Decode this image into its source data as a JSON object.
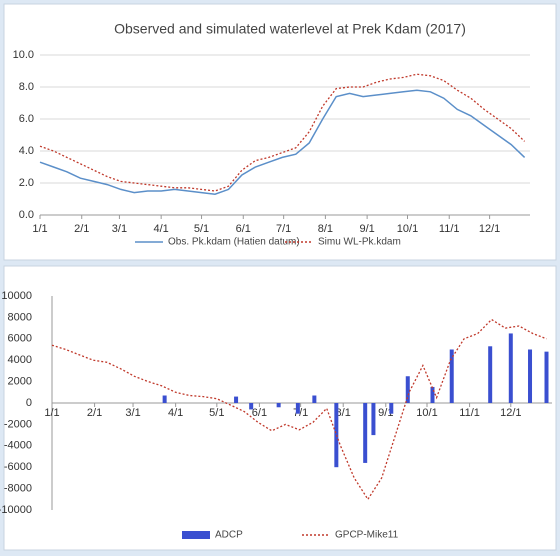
{
  "chart_data": [
    {
      "type": "line",
      "title": "Observed and simulated waterlevel at Prek Kdam (2017)",
      "x": [
        1,
        11,
        21,
        31,
        41,
        51,
        61,
        71,
        81,
        91,
        101,
        111,
        121,
        131,
        141,
        151,
        161,
        171,
        181,
        191,
        201,
        211,
        221,
        231,
        241,
        251,
        261,
        271,
        281,
        291,
        301,
        311,
        321,
        331,
        341,
        351,
        361
      ],
      "xlim": [
        1,
        365
      ],
      "xticks": [
        {
          "value": 1,
          "label": "1/1"
        },
        {
          "value": 32,
          "label": "2/1"
        },
        {
          "value": 60,
          "label": "3/1"
        },
        {
          "value": 91,
          "label": "4/1"
        },
        {
          "value": 121,
          "label": "5/1"
        },
        {
          "value": 152,
          "label": "6/1"
        },
        {
          "value": 182,
          "label": "7/1"
        },
        {
          "value": 213,
          "label": "8/1"
        },
        {
          "value": 244,
          "label": "9/1"
        },
        {
          "value": 274,
          "label": "10/1"
        },
        {
          "value": 305,
          "label": "11/1"
        },
        {
          "value": 335,
          "label": "12/1"
        }
      ],
      "ylim": [
        0,
        10
      ],
      "yticks": [
        {
          "value": 0,
          "label": "0.0"
        },
        {
          "value": 2,
          "label": "2.0"
        },
        {
          "value": 4,
          "label": "4.0"
        },
        {
          "value": 6,
          "label": "6.0"
        },
        {
          "value": 8,
          "label": "8.0"
        },
        {
          "value": 10,
          "label": "10.0"
        }
      ],
      "grid": true,
      "series": [
        {
          "name": "Obs. Pk.kdam (Hatien datum)",
          "color": "#5b8fc9",
          "dash": false,
          "values": [
            3.3,
            3.0,
            2.7,
            2.3,
            2.1,
            1.9,
            1.6,
            1.4,
            1.5,
            1.5,
            1.6,
            1.5,
            1.4,
            1.3,
            1.6,
            2.5,
            3.0,
            3.3,
            3.6,
            3.8,
            4.5,
            6.0,
            7.4,
            7.6,
            7.4,
            7.5,
            7.6,
            7.7,
            7.8,
            7.7,
            7.3,
            6.6,
            6.2,
            5.6,
            5.0,
            4.4,
            3.6
          ]
        },
        {
          "name": "Simu WL-Pk.kdam",
          "color": "#c0392b",
          "dash": true,
          "values": [
            4.3,
            4.0,
            3.6,
            3.2,
            2.8,
            2.4,
            2.1,
            2.0,
            1.9,
            1.8,
            1.7,
            1.7,
            1.6,
            1.5,
            1.8,
            2.8,
            3.4,
            3.6,
            3.9,
            4.2,
            5.2,
            6.8,
            7.9,
            8.0,
            8.0,
            8.3,
            8.5,
            8.6,
            8.8,
            8.7,
            8.4,
            7.8,
            7.3,
            6.6,
            6.0,
            5.4,
            4.6
          ]
        }
      ]
    },
    {
      "type": "combo",
      "xlim": [
        1,
        365
      ],
      "xticks": [
        {
          "value": 1,
          "label": "1/1"
        },
        {
          "value": 32,
          "label": "2/1"
        },
        {
          "value": 60,
          "label": "3/1"
        },
        {
          "value": 91,
          "label": "4/1"
        },
        {
          "value": 121,
          "label": "5/1"
        },
        {
          "value": 152,
          "label": "6/1"
        },
        {
          "value": 182,
          "label": "7/1"
        },
        {
          "value": 213,
          "label": "8/1"
        },
        {
          "value": 244,
          "label": "9/1"
        },
        {
          "value": 274,
          "label": "10/1"
        },
        {
          "value": 305,
          "label": "11/1"
        },
        {
          "value": 335,
          "label": "12/1"
        }
      ],
      "ylim": [
        -10000,
        10000
      ],
      "yticks": [
        -10000,
        -8000,
        -6000,
        -4000,
        -2000,
        0,
        2000,
        4000,
        6000,
        8000,
        10000
      ],
      "grid": false,
      "series": [
        {
          "name": "ADCP",
          "type": "bar",
          "color": "#3a4fd0",
          "x": [
            83,
            135,
            146,
            166,
            180,
            192,
            208,
            229,
            235,
            248,
            260,
            278,
            292,
            320,
            335,
            349,
            361
          ],
          "values": [
            700,
            600,
            -600,
            -400,
            -1000,
            700,
            -6000,
            -5600,
            -3000,
            -1000,
            2500,
            1500,
            5000,
            5300,
            6500,
            5000,
            4800
          ]
        },
        {
          "name": "GPCP-Mike11",
          "type": "line",
          "color": "#c0392b",
          "dash": true,
          "x": [
            1,
            11,
            21,
            31,
            41,
            51,
            61,
            71,
            81,
            91,
            101,
            111,
            121,
            131,
            141,
            151,
            161,
            171,
            181,
            191,
            201,
            211,
            221,
            231,
            241,
            251,
            261,
            271,
            281,
            291,
            301,
            311,
            321,
            331,
            341,
            351,
            361
          ],
          "values": [
            5400,
            5000,
            4500,
            4000,
            3800,
            3200,
            2500,
            2000,
            1600,
            1000,
            700,
            600,
            400,
            -200,
            -800,
            -1800,
            -2600,
            -2000,
            -2500,
            -1800,
            -500,
            -4000,
            -7000,
            -9000,
            -7000,
            -3000,
            1000,
            3500,
            500,
            4000,
            6000,
            6500,
            7800,
            7000,
            7200,
            6500,
            6000
          ]
        }
      ]
    }
  ]
}
